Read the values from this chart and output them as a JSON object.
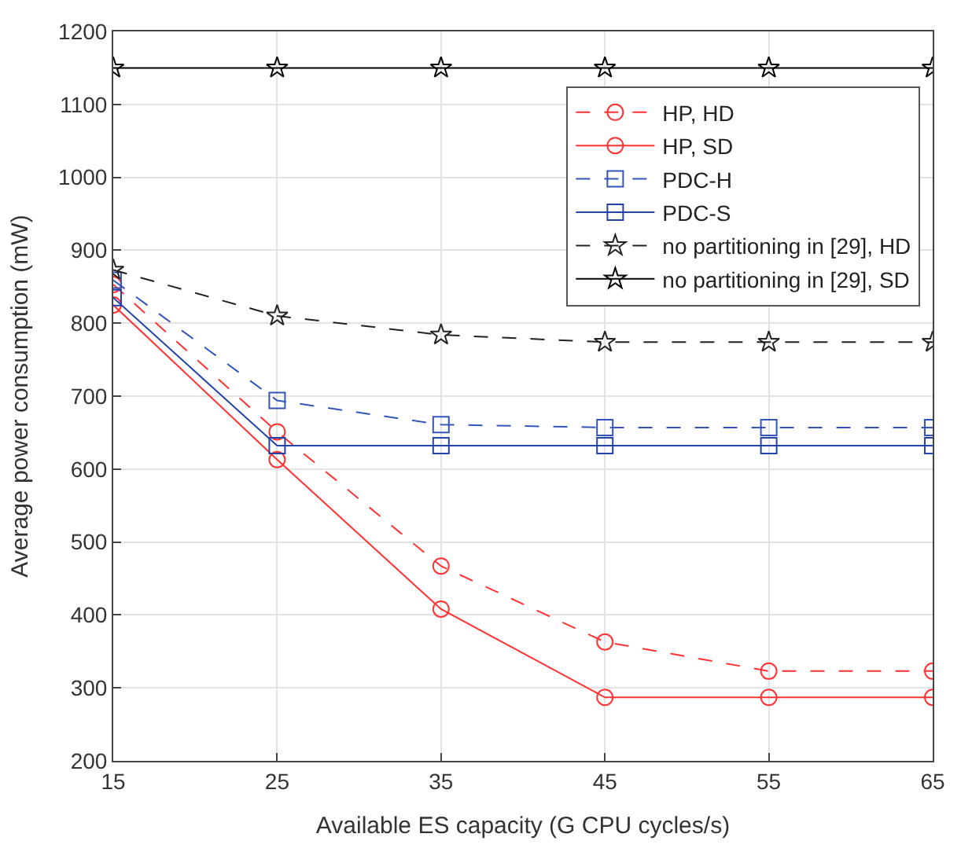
{
  "chart_data": {
    "type": "line",
    "xlabel": "Available ES capacity (G CPU cycles/s)",
    "ylabel": "Average power consumption (mW)",
    "x": [
      15,
      25,
      35,
      45,
      55,
      65
    ],
    "xlim": [
      15,
      65
    ],
    "xticks": [
      15,
      25,
      35,
      45,
      55,
      65
    ],
    "ylim": [
      200,
      1200
    ],
    "yticks": [
      200,
      300,
      400,
      500,
      600,
      700,
      800,
      900,
      1000,
      1100,
      1200
    ],
    "grid": true,
    "legend": "top right",
    "series": [
      {
        "name": "HP, HD",
        "color": "#ff3333",
        "marker": "circle",
        "line_style": "dashed",
        "values": [
          853,
          651,
          467,
          363,
          323,
          323
        ]
      },
      {
        "name": "HP, SD",
        "color": "#ff3333",
        "marker": "circle",
        "line_style": "solid",
        "values": [
          825,
          613,
          408,
          287,
          287,
          287
        ]
      },
      {
        "name": "PDC-H",
        "color": "#3355bb",
        "marker": "square",
        "line_style": "dashed",
        "values": [
          859,
          694,
          661,
          657,
          657,
          657
        ]
      },
      {
        "name": "PDC-S",
        "color": "#2244aa",
        "marker": "square",
        "line_style": "solid",
        "values": [
          835,
          632,
          632,
          632,
          632,
          632
        ]
      },
      {
        "name": "no partitioning in [29], HD",
        "color": "#222222",
        "marker": "star",
        "line_style": "dashed",
        "values": [
          873,
          810,
          784,
          774,
          774,
          774
        ]
      },
      {
        "name": "no partitioning in [29], SD",
        "color": "#000000",
        "marker": "star",
        "line_style": "solid",
        "values": [
          1150,
          1150,
          1150,
          1150,
          1150,
          1150
        ]
      }
    ]
  }
}
